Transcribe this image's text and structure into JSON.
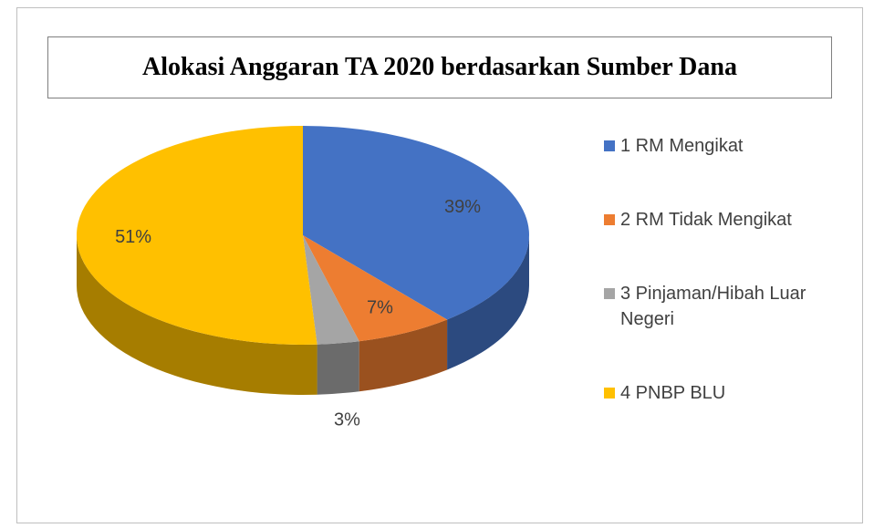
{
  "chart_data": {
    "type": "pie3d",
    "title": "Alokasi Anggaran TA 2020 berdasarkan Sumber Dana",
    "categories": [
      "1 RM Mengikat",
      "2 RM Tidak Mengikat",
      "3 Pinjaman/Hibah Luar Negeri",
      "4 PNBP BLU"
    ],
    "values": [
      39,
      7,
      3,
      51
    ],
    "value_labels": [
      "39%",
      "7%",
      "3%",
      "51%"
    ],
    "colors": [
      "#4472c4",
      "#ed7d31",
      "#a5a5a5",
      "#ffc000"
    ],
    "legend": "right"
  }
}
